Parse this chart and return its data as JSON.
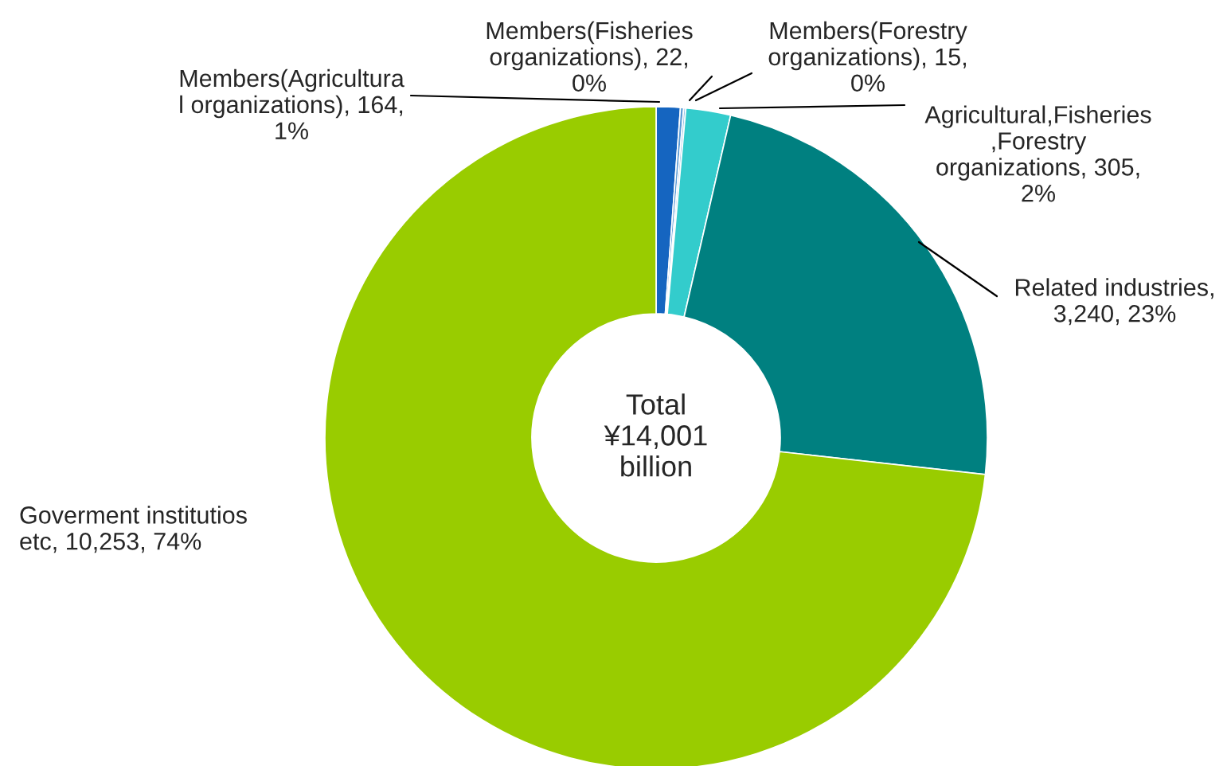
{
  "chart_data": {
    "type": "donut",
    "categories": [
      "Members(Agricultura\nl organizations)",
      "Members(Fisheries\norganizations)",
      "Members(Forestry\norganizations)",
      "Agricultural,Fisheries\n,Forestry\norganizations",
      "Related industries",
      "Goverment institutios\netc"
    ],
    "values": [
      164,
      22,
      15,
      305,
      3240,
      10253
    ],
    "value_labels": [
      "164,\n1%",
      "22,\n0%",
      "15,\n0%",
      "305,\n2%",
      ",\n3,240, 23%",
      "10,253, 74%"
    ],
    "colors": [
      "#1565c0",
      "#5b9bd5",
      "#9dc3e6",
      "#33cccc",
      "#008080",
      "#99cc00"
    ],
    "annotations": [
      "Total\n¥14,001\nbillion"
    ],
    "legend": false
  }
}
